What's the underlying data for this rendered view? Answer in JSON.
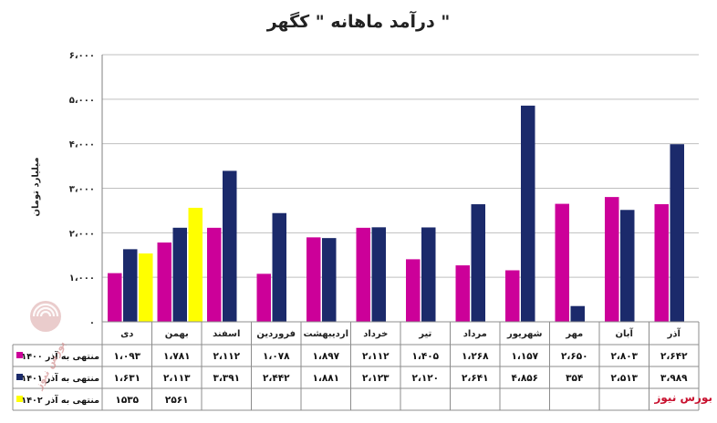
{
  "chart_data": {
    "type": "bar",
    "title": "درآمد ماهانه \" کگهر \"",
    "ylabel": "میلیارد تومان",
    "ylim": [
      0,
      6000
    ],
    "yticks": [
      0,
      1000,
      2000,
      3000,
      4000,
      5000,
      6000
    ],
    "ytick_labels": [
      "۰",
      "۱،۰۰۰",
      "۲،۰۰۰",
      "۳،۰۰۰",
      "۴،۰۰۰",
      "۵،۰۰۰",
      "۶،۰۰۰"
    ],
    "grid": true,
    "legend": "data-table-left",
    "categories": [
      "دی",
      "بهمن",
      "اسفند",
      "فروردین",
      "اردیبهشت",
      "خرداد",
      "تیر",
      "مرداد",
      "شهریور",
      "مهر",
      "آبان",
      "آذر"
    ],
    "series": [
      {
        "name": "منتهی به آذر ۱۴۰۰",
        "color": "#cc0099",
        "values": [
          1093,
          1781,
          2112,
          1078,
          1897,
          2112,
          1405,
          1268,
          1157,
          2650,
          2803,
          2642
        ],
        "labels": [
          "۱،۰۹۳",
          "۱،۷۸۱",
          "۲،۱۱۲",
          "۱،۰۷۸",
          "۱،۸۹۷",
          "۲،۱۱۲",
          "۱،۴۰۵",
          "۱،۲۶۸",
          "۱،۱۵۷",
          "۲،۶۵۰",
          "۲،۸۰۳",
          "۲،۶۴۲"
        ]
      },
      {
        "name": "منتهی به آذر ۱۴۰۱",
        "color": "#1b2a6b",
        "values": [
          1631,
          2113,
          3391,
          2442,
          1881,
          2123,
          2120,
          2641,
          4856,
          354,
          2513,
          3989
        ],
        "labels": [
          "۱،۶۳۱",
          "۲،۱۱۳",
          "۳،۳۹۱",
          "۲،۴۴۲",
          "۱،۸۸۱",
          "۲،۱۲۳",
          "۲،۱۲۰",
          "۲،۶۴۱",
          "۴،۸۵۶",
          "۳۵۴",
          "۲،۵۱۳",
          "۳،۹۸۹"
        ]
      },
      {
        "name": "منتهی به آذر ۱۴۰۲",
        "color": "#ffff00",
        "values": [
          1535,
          2561,
          null,
          null,
          null,
          null,
          null,
          null,
          null,
          null,
          null,
          null
        ],
        "labels": [
          "۱۵۳۵",
          "۲۵۶۱",
          "",
          "",
          "",
          "",
          "",
          "",
          "",
          "",
          "",
          ""
        ]
      }
    ]
  },
  "watermark": {
    "brand_text": "بورس نیوز",
    "logo_text": "بورس نیوز",
    "brand_color": "#c8102e"
  }
}
